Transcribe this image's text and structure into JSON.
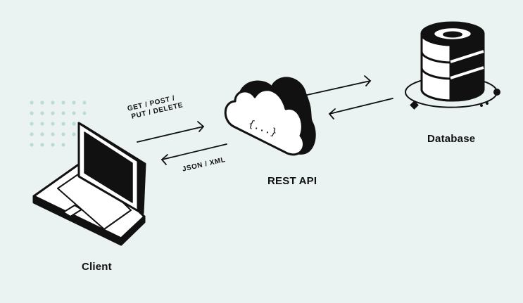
{
  "nodes": {
    "client": {
      "label": "Client"
    },
    "api": {
      "label": "REST API",
      "glyph": "{...}"
    },
    "database": {
      "label": "Database"
    }
  },
  "requests": {
    "line1": "GET / POST /",
    "line2": "PUT / DELETE"
  },
  "response": {
    "label": "JSON / XML"
  },
  "colors": {
    "background": "#eaf2f2",
    "ink": "#111111",
    "dots": "#b9ddd3"
  },
  "icons": [
    "laptop-icon",
    "cloud-icon",
    "database-icon",
    "dot-grid-decoration"
  ]
}
